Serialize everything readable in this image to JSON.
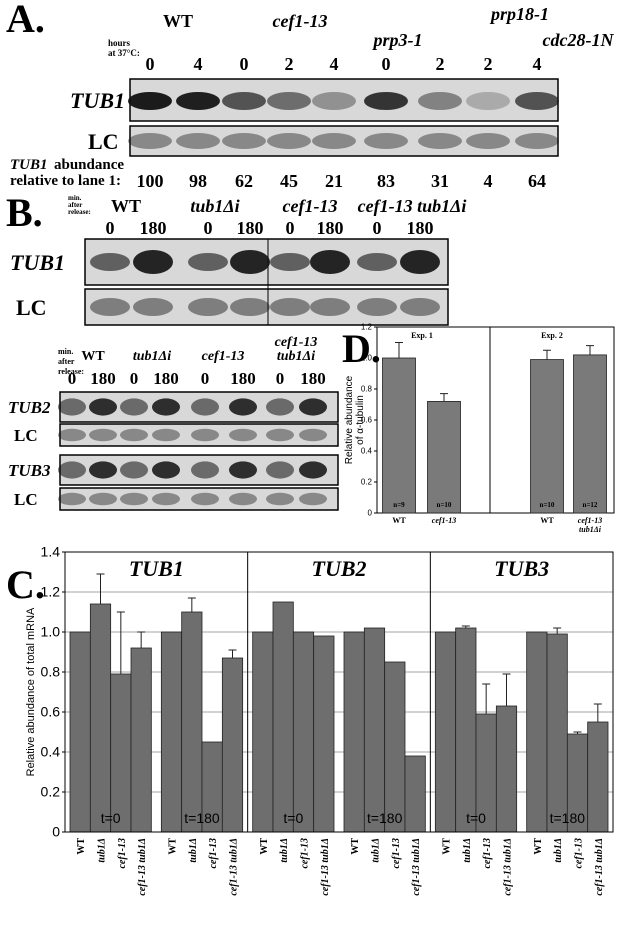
{
  "panel_a": {
    "label": "A.",
    "groups": [
      "WT",
      "cef1-13",
      "prp3-1",
      "prp18-1",
      "cdc28-1N"
    ],
    "hours_label": [
      "hours",
      "at 37°C:"
    ],
    "hours": [
      0,
      4,
      0,
      2,
      4,
      0,
      2,
      2,
      4
    ],
    "rows": [
      "TUB1",
      "LC"
    ],
    "abundance_gene": "TUB1",
    "abundance_label": [
      "abundance",
      "relative to lane 1:"
    ],
    "abundance": [
      100,
      98,
      62,
      45,
      21,
      83,
      31,
      4,
      64
    ]
  },
  "panel_b": {
    "label": "B.",
    "release_label": [
      "min.",
      "after",
      "release:"
    ],
    "groups": [
      "WT",
      "tub1Δi",
      "cef1-13",
      "cef1-13 tub1Δi"
    ],
    "minutes": [
      0,
      180,
      0,
      180,
      0,
      180,
      0,
      180
    ],
    "rows": [
      "TUB1",
      "LC"
    ]
  },
  "panel_b2": {
    "release_label": [
      "min.",
      "after",
      "release:"
    ],
    "groups": [
      [
        "WT"
      ],
      [
        "tub1Δi"
      ],
      [
        "cef1-13"
      ],
      [
        "cef1-13",
        "tub1Δi"
      ]
    ],
    "minutes": [
      0,
      180,
      0,
      180,
      0,
      180,
      0,
      180
    ],
    "rows": [
      "TUB2",
      "LC",
      "TUB3",
      "LC"
    ]
  },
  "chart_data": [
    {
      "type": "bar",
      "label": "D.",
      "ylabel": [
        "Relative abundance",
        "of α-tubulin"
      ],
      "experiments": [
        "Exp. 1",
        "Exp. 2"
      ],
      "categories": [
        [
          "WT"
        ],
        [
          "cef1-13"
        ],
        [
          "WT"
        ],
        [
          "cef1-13",
          "tub1Δi"
        ]
      ],
      "values": [
        1.0,
        0.72,
        0.99,
        1.02
      ],
      "errors": [
        0.1,
        0.05,
        0.06,
        0.06
      ],
      "n_labels": [
        "n=9",
        "n=10",
        "n=10",
        "n=12"
      ],
      "color": "#7a7a7a",
      "ylim": [
        0,
        1.2
      ],
      "yticks": [
        0,
        0.2,
        0.4,
        0.6,
        0.8,
        {
          "value": 1,
          "label": "1.0"
        },
        1.2
      ]
    },
    {
      "type": "bar",
      "label": "C.",
      "ylabel": "Relative abundance of total mRNA",
      "color": "#6e6e6e",
      "grid": true,
      "ylim": [
        0,
        1.4
      ],
      "yticks": [
        0,
        0.2,
        0.4,
        0.6,
        0.8,
        {
          "value": 1,
          "label": "1.0"
        },
        1.2,
        1.4
      ],
      "categories": [
        "WT",
        "tub1Δ",
        "cef1-13",
        "cef1-13 tub1Δ"
      ],
      "groups": [
        {
          "name": "TUB1",
          "panels": [
            {
              "label": "t=0",
              "values": [
                1.0,
                1.14,
                0.79,
                0.92
              ],
              "errors": [
                null,
                0.15,
                0.31,
                0.08
              ]
            },
            {
              "label": "t=180",
              "values": [
                1.0,
                1.1,
                0.45,
                0.87
              ],
              "errors": [
                null,
                0.07,
                null,
                0.04
              ]
            }
          ]
        },
        {
          "name": "TUB2",
          "panels": [
            {
              "label": "t=0",
              "values": [
                1.0,
                1.15,
                1.0,
                0.98
              ],
              "errors": [
                null,
                null,
                null,
                null
              ]
            },
            {
              "label": "t=180",
              "values": [
                1.0,
                1.02,
                0.85,
                0.38
              ],
              "errors": [
                null,
                null,
                null,
                null
              ]
            }
          ]
        },
        {
          "name": "TUB3",
          "panels": [
            {
              "label": "t=0",
              "values": [
                1.0,
                1.02,
                0.59,
                0.63
              ],
              "errors": [
                null,
                0.01,
                0.15,
                0.16
              ]
            },
            {
              "label": "t=180",
              "values": [
                1.0,
                0.99,
                0.49,
                0.55
              ],
              "errors": [
                null,
                0.03,
                0.01,
                0.09
              ]
            }
          ]
        }
      ]
    }
  ]
}
